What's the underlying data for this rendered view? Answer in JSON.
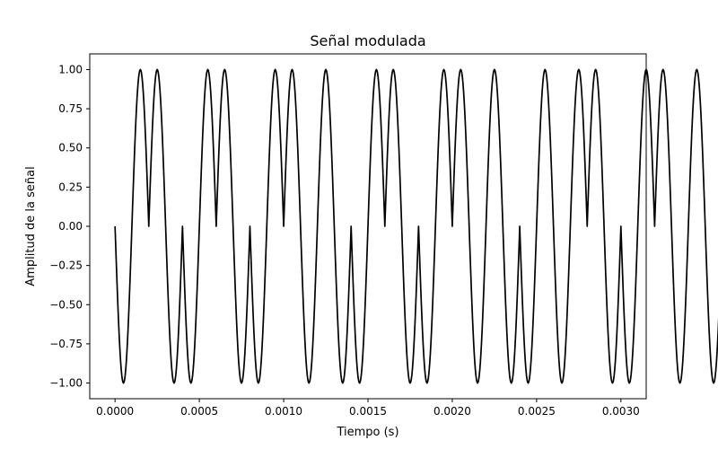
{
  "chart_data": {
    "type": "line",
    "title": "Señal modulada",
    "xlabel": "Tiempo (s)",
    "ylabel": "Amplitud de la señal",
    "xlim": [
      -0.00015,
      0.00315
    ],
    "ylim": [
      -1.1,
      1.1
    ],
    "xticks": [
      0.0,
      0.0005,
      0.001,
      0.0015,
      0.002,
      0.0025,
      0.003
    ],
    "xtick_labels": [
      "0.0000",
      "0.0005",
      "0.0010",
      "0.0015",
      "0.0020",
      "0.0025",
      "0.0030"
    ],
    "yticks": [
      1.0,
      0.75,
      0.5,
      0.25,
      0.0,
      -0.25,
      -0.5,
      -0.75,
      -1.0
    ],
    "ytick_labels": [
      "1.00",
      "0.75",
      "0.50",
      "0.25",
      "0.00",
      "−0.25",
      "−0.50",
      "−0.75",
      "−1.00"
    ],
    "grid": false,
    "series": [
      {
        "color": "#000000",
        "carrier_frequency_hz": 5000,
        "bit_duration_s": 0.0002,
        "bits": [
          0,
          1,
          0,
          1,
          0,
          1,
          1,
          0,
          1,
          0,
          1,
          1,
          0,
          0,
          1,
          0,
          1,
          1,
          1,
          1,
          1,
          1,
          1,
          0,
          1,
          0,
          1,
          0,
          1,
          0
        ],
        "sample_points": {
          "x": [
            0.0,
            5e-05,
            0.0001,
            0.00015,
            0.0002,
            0.00025,
            0.0003,
            0.00035,
            0.0004,
            0.00045,
            0.0005,
            0.00055,
            0.0006
          ],
          "y": [
            0.0,
            -1.0,
            0.0,
            1.0,
            0.0,
            1.0,
            0.0,
            -1.0,
            0.0,
            -1.0,
            0.0,
            1.0,
            0.0
          ]
        }
      }
    ]
  }
}
